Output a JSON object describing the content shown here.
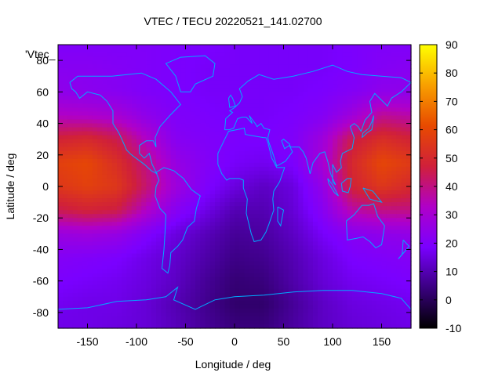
{
  "chart_data": {
    "type": "heatmap",
    "title": "VTEC / TECU 20220521_141.02700",
    "xlabel": "Longitude / deg",
    "ylabel": "Latitude / deg",
    "key_label": "'Vtec_",
    "xlim": [
      -180,
      180
    ],
    "ylim": [
      -90,
      90
    ],
    "x_ticks": [
      -150,
      -100,
      -50,
      0,
      50,
      100,
      150
    ],
    "y_ticks": [
      -80,
      -60,
      -40,
      -20,
      0,
      20,
      40,
      60,
      80
    ],
    "colorbar": {
      "range": [
        -10,
        90
      ],
      "ticks": [
        -10,
        0,
        10,
        20,
        30,
        40,
        50,
        60,
        70,
        80,
        90
      ],
      "palette": [
        "#000000",
        "#3a0080",
        "#7a00ff",
        "#b000c8",
        "#d0203a",
        "#e84a00",
        "#f8a000",
        "#ffff00"
      ]
    },
    "lon": [
      -180,
      -150,
      -120,
      -90,
      -60,
      -30,
      0,
      30,
      60,
      90,
      120,
      150,
      180
    ],
    "lat": [
      90,
      75,
      60,
      45,
      30,
      15,
      0,
      -15,
      -30,
      -45,
      -60,
      -75,
      -90
    ],
    "vtec": [
      [
        20,
        20,
        20,
        20,
        19,
        19,
        18,
        18,
        18,
        18,
        19,
        20,
        20
      ],
      [
        22,
        22,
        21,
        20,
        19,
        18,
        18,
        18,
        18,
        18,
        19,
        21,
        22
      ],
      [
        24,
        23,
        22,
        20,
        19,
        18,
        18,
        18,
        18,
        19,
        21,
        24,
        24
      ],
      [
        33,
        32,
        30,
        24,
        20,
        19,
        18,
        18,
        19,
        21,
        28,
        38,
        36
      ],
      [
        48,
        50,
        45,
        33,
        22,
        20,
        19,
        19,
        20,
        28,
        45,
        52,
        48
      ],
      [
        58,
        60,
        52,
        40,
        26,
        21,
        18,
        17,
        19,
        30,
        50,
        60,
        56
      ],
      [
        55,
        58,
        55,
        42,
        28,
        20,
        15,
        12,
        15,
        25,
        48,
        55,
        50
      ],
      [
        45,
        48,
        46,
        33,
        22,
        16,
        10,
        10,
        14,
        22,
        36,
        40,
        40
      ],
      [
        27,
        28,
        26,
        20,
        15,
        11,
        7,
        8,
        12,
        18,
        22,
        24,
        25
      ],
      [
        21,
        20,
        19,
        16,
        13,
        9,
        5,
        6,
        10,
        15,
        19,
        20,
        21
      ],
      [
        19,
        18,
        17,
        15,
        12,
        7,
        3,
        4,
        9,
        14,
        17,
        18,
        19
      ],
      [
        17,
        16,
        16,
        14,
        10,
        6,
        2,
        2,
        7,
        12,
        15,
        16,
        17
      ],
      [
        16,
        16,
        15,
        14,
        11,
        7,
        4,
        4,
        8,
        12,
        14,
        15,
        16
      ]
    ]
  }
}
